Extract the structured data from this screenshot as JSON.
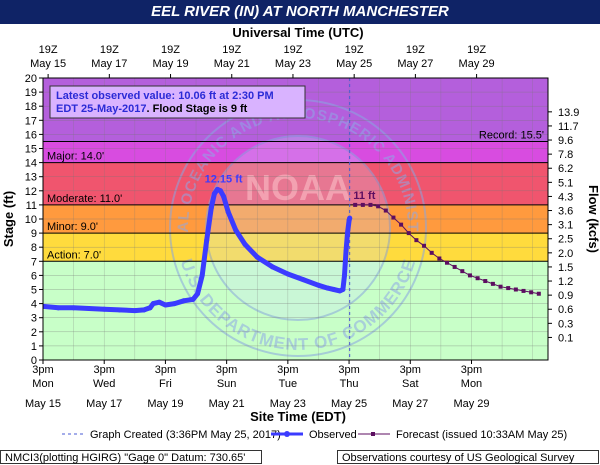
{
  "title": "EEL RIVER (IN) AT NORTH MANCHESTER",
  "top_axis_label": "Universal Time (UTC)",
  "bottom_axis_label": "Site Time (EDT)",
  "left_axis_label": "Stage (ft)",
  "right_axis_label": "Flow (kcfs)",
  "info_box": {
    "line1": "Latest observed value: 10.06 ft at 2:30 PM",
    "line2_prefix": "EDT 25-May-2017",
    "line2_suffix": ". Flood Stage is 9 ft"
  },
  "watermark": {
    "top_text": "NATIONAL OCEANIC AND ATMOSPHERIC ADMINISTRATION",
    "bottom_text": "U.S. DEPARTMENT OF COMMERCE",
    "center_text": "NOAA"
  },
  "legend": {
    "graph_created": "Graph Created (3:36PM May 25, 2017)",
    "observed": "Observed",
    "forecast": "Forecast (issued 10:33AM May 25)"
  },
  "footer": {
    "left": "NMCI3(plotting HGIRG) \"Gage 0\" Datum: 730.65'",
    "right": "Observations courtesy of US Geological Survey"
  },
  "colors": {
    "record": "#b45fdc",
    "major": "#d84ce0",
    "moderate": "#f0556e",
    "minor": "#ff9a3e",
    "action": "#ffdb3d",
    "normal": "#c8ffc8",
    "observed": "#3b3bff",
    "forecast": "#5c0e60"
  },
  "chart_data": {
    "type": "line",
    "xlim_days": [
      0,
      16.5
    ],
    "ylim": [
      0,
      20
    ],
    "y_ticks": [
      0,
      1,
      2,
      3,
      4,
      5,
      6,
      7,
      8,
      9,
      10,
      11,
      12,
      13,
      14,
      15,
      16,
      17,
      18,
      19,
      20
    ],
    "flow_ticks": [
      {
        "stage": 1.6,
        "label": "0.1"
      },
      {
        "stage": 2.6,
        "label": "0.3"
      },
      {
        "stage": 3.6,
        "label": "0.6"
      },
      {
        "stage": 4.6,
        "label": "0.9"
      },
      {
        "stage": 5.6,
        "label": "1.2"
      },
      {
        "stage": 6.6,
        "label": "1.5"
      },
      {
        "stage": 7.6,
        "label": "2.0"
      },
      {
        "stage": 8.6,
        "label": "2.5"
      },
      {
        "stage": 9.6,
        "label": "3.1"
      },
      {
        "stage": 10.6,
        "label": "3.6"
      },
      {
        "stage": 11.6,
        "label": "4.3"
      },
      {
        "stage": 12.6,
        "label": "5.1"
      },
      {
        "stage": 13.6,
        "label": "6.2"
      },
      {
        "stage": 14.6,
        "label": "7.8"
      },
      {
        "stage": 15.6,
        "label": "9.6"
      },
      {
        "stage": 16.6,
        "label": "11.7"
      },
      {
        "stage": 17.6,
        "label": "13.9"
      }
    ],
    "top_ticks": [
      {
        "day": 0.167,
        "line1": "19Z",
        "line2": "May 15"
      },
      {
        "day": 2.167,
        "line1": "19Z",
        "line2": "May 17"
      },
      {
        "day": 4.167,
        "line1": "19Z",
        "line2": "May 19"
      },
      {
        "day": 6.167,
        "line1": "19Z",
        "line2": "May 21"
      },
      {
        "day": 8.167,
        "line1": "19Z",
        "line2": "May 23"
      },
      {
        "day": 10.167,
        "line1": "19Z",
        "line2": "May 25"
      },
      {
        "day": 12.167,
        "line1": "19Z",
        "line2": "May 27"
      },
      {
        "day": 14.167,
        "line1": "19Z",
        "line2": "May 29"
      }
    ],
    "bottom_ticks": [
      {
        "day": 0,
        "line1": "3pm",
        "line2": "Mon",
        "line3": "May 15"
      },
      {
        "day": 2,
        "line1": "3pm",
        "line2": "Wed",
        "line3": "May 17"
      },
      {
        "day": 4,
        "line1": "3pm",
        "line2": "Fri",
        "line3": "May 19"
      },
      {
        "day": 6,
        "line1": "3pm",
        "line2": "Sun",
        "line3": "May 21"
      },
      {
        "day": 8,
        "line1": "3pm",
        "line2": "Tue",
        "line3": "May 23"
      },
      {
        "day": 10,
        "line1": "3pm",
        "line2": "Thu",
        "line3": "May 25"
      },
      {
        "day": 12,
        "line1": "3pm",
        "line2": "Sat",
        "line3": "May 27"
      },
      {
        "day": 14,
        "line1": "3pm",
        "line2": "Mon",
        "line3": "May 29"
      }
    ],
    "thresholds": [
      {
        "name": "Record",
        "label": "Record: 15.5'",
        "value": 15.5,
        "side": "right"
      },
      {
        "name": "Major",
        "label": "Major: 14.0'",
        "value": 14.0,
        "side": "left"
      },
      {
        "name": "Moderate",
        "label": "Moderate: 11.0'",
        "value": 11.0,
        "side": "left"
      },
      {
        "name": "Minor",
        "label": "Minor: 9.0'",
        "value": 9.0,
        "side": "left"
      },
      {
        "name": "Action",
        "label": "Action: 7.0'",
        "value": 7.0,
        "side": "left"
      }
    ],
    "graph_created_day": 10.02,
    "peak_label": {
      "text": "12.15 ft",
      "day": 5.9,
      "value": 12.15
    },
    "forecast_label": {
      "text": "11 ft",
      "day": 10.5,
      "value": 11.0
    },
    "observed": [
      [
        0.0,
        3.8
      ],
      [
        0.5,
        3.7
      ],
      [
        1.0,
        3.7
      ],
      [
        1.5,
        3.65
      ],
      [
        2.0,
        3.6
      ],
      [
        2.5,
        3.55
      ],
      [
        3.0,
        3.5
      ],
      [
        3.3,
        3.55
      ],
      [
        3.5,
        3.7
      ],
      [
        3.6,
        4.0
      ],
      [
        3.8,
        4.1
      ],
      [
        4.0,
        3.9
      ],
      [
        4.3,
        4.0
      ],
      [
        4.6,
        4.2
      ],
      [
        4.9,
        4.3
      ],
      [
        5.05,
        4.7
      ],
      [
        5.2,
        6.0
      ],
      [
        5.35,
        8.5
      ],
      [
        5.5,
        10.8
      ],
      [
        5.6,
        11.8
      ],
      [
        5.7,
        12.1
      ],
      [
        5.8,
        12.0
      ],
      [
        5.9,
        11.6
      ],
      [
        6.05,
        10.5
      ],
      [
        6.3,
        9.2
      ],
      [
        6.6,
        8.2
      ],
      [
        7.0,
        7.3
      ],
      [
        7.5,
        6.6
      ],
      [
        8.0,
        6.1
      ],
      [
        8.5,
        5.7
      ],
      [
        9.0,
        5.3
      ],
      [
        9.3,
        5.1
      ],
      [
        9.5,
        5.0
      ],
      [
        9.7,
        4.9
      ],
      [
        9.8,
        5.0
      ],
      [
        9.85,
        6.0
      ],
      [
        9.9,
        7.7
      ],
      [
        9.95,
        9.0
      ],
      [
        10.0,
        9.9
      ],
      [
        10.02,
        10.06
      ]
    ],
    "forecast": [
      [
        10.2,
        11.0
      ],
      [
        10.45,
        11.0
      ],
      [
        10.7,
        11.0
      ],
      [
        10.95,
        10.9
      ],
      [
        11.2,
        10.6
      ],
      [
        11.45,
        10.1
      ],
      [
        11.7,
        9.6
      ],
      [
        11.95,
        9.0
      ],
      [
        12.2,
        8.5
      ],
      [
        12.45,
        8.1
      ],
      [
        12.7,
        7.6
      ],
      [
        12.95,
        7.2
      ],
      [
        13.2,
        6.9
      ],
      [
        13.45,
        6.6
      ],
      [
        13.7,
        6.3
      ],
      [
        13.95,
        6.0
      ],
      [
        14.2,
        5.8
      ],
      [
        14.45,
        5.6
      ],
      [
        14.7,
        5.4
      ],
      [
        14.95,
        5.2
      ],
      [
        15.2,
        5.1
      ],
      [
        15.45,
        5.0
      ],
      [
        15.7,
        4.9
      ],
      [
        15.95,
        4.8
      ],
      [
        16.2,
        4.7
      ]
    ]
  }
}
